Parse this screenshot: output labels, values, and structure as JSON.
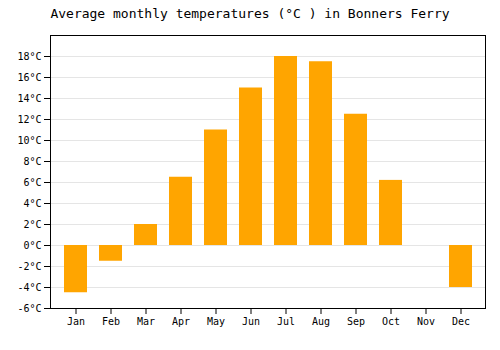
{
  "chart_data": {
    "type": "bar",
    "title": "Average monthly temperatures (°C ) in Bonners Ferry",
    "categories": [
      "Jan",
      "Feb",
      "Mar",
      "Apr",
      "May",
      "Jun",
      "Jul",
      "Aug",
      "Sep",
      "Oct",
      "Nov",
      "Dec"
    ],
    "values": [
      -4.5,
      -1.5,
      2.0,
      6.5,
      11.0,
      15.0,
      18.0,
      17.5,
      12.5,
      6.2,
      0.0,
      -4.0
    ],
    "color": "#FFA500",
    "ylim": [
      -6,
      20
    ],
    "yticks": [
      {
        "value": -6,
        "label": "-6°C"
      },
      {
        "value": -4,
        "label": "-4°C"
      },
      {
        "value": -2,
        "label": "-2°C"
      },
      {
        "value": 0,
        "label": "0°C"
      },
      {
        "value": 2,
        "label": "2°C"
      },
      {
        "value": 4,
        "label": "4°C"
      },
      {
        "value": 6,
        "label": "6°C"
      },
      {
        "value": 8,
        "label": "8°C"
      },
      {
        "value": 10,
        "label": "10°C"
      },
      {
        "value": 12,
        "label": "12°C"
      },
      {
        "value": 14,
        "label": "14°C"
      },
      {
        "value": 16,
        "label": "16°C"
      },
      {
        "value": 18,
        "label": "18°C"
      }
    ],
    "grid": true
  }
}
